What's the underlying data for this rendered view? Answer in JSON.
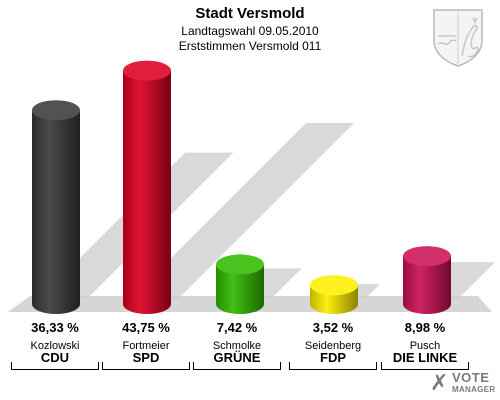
{
  "header": {
    "title": "Stadt Versmold",
    "subtitle": "Landtagswahl 09.05.2010",
    "subtitle2": "Erststimmen Versmold 011"
  },
  "logo": {
    "mark": "✗",
    "line1": "VOTE",
    "line2": "MANAGER"
  },
  "colors": {
    "CDU": "#3a3a3a",
    "SPD": "#dd0022",
    "GRUENE": "#33bb00",
    "FDP": "#ffee00",
    "LINKE": "#cc1155",
    "floor": "#d4d4d4",
    "shadow": "#cccccc"
  },
  "chart_data": {
    "type": "bar",
    "categories": [
      "CDU",
      "SPD",
      "GRÜNE",
      "FDP",
      "DIE LINKE"
    ],
    "candidates": [
      "Kozlowski",
      "Fortmeier",
      "Schmolke",
      "Seidenberg",
      "Pusch"
    ],
    "values": [
      36.33,
      43.75,
      7.42,
      3.52,
      8.98
    ],
    "value_labels": [
      "36,33 %",
      "43,75 %",
      "7,42 %",
      "3,52 %",
      "8,98 %"
    ],
    "ylim": [
      0,
      45
    ]
  }
}
